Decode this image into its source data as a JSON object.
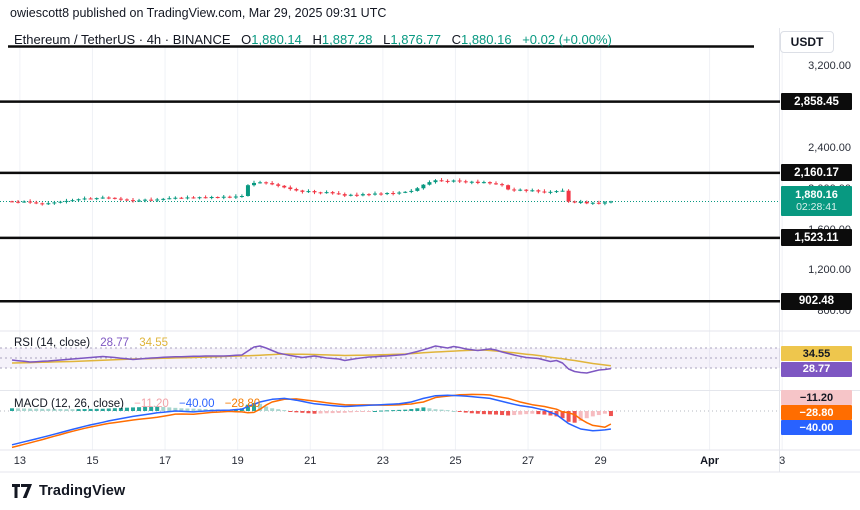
{
  "attribution": "owiescott8 published on TradingView.com, Mar 29, 2025 09:31 UTC",
  "header": {
    "title": "Ethereum / TetherUS · 4h · BINANCE",
    "o_key": "O",
    "o": "1,880.14",
    "h_key": "H",
    "h": "1,887.28",
    "l_key": "L",
    "l": "1,876.77",
    "c_key": "C",
    "c": "1,880.16",
    "change": "+0.02 (+0.00%)"
  },
  "axis": {
    "currency": "USDT",
    "price_ticks": [
      {
        "value": 3200,
        "label": "3,200.00"
      },
      {
        "value": 2400,
        "label": "2,400.00"
      },
      {
        "value": 2000,
        "label": "2,000.00"
      },
      {
        "value": 1600,
        "label": "1,600.00"
      },
      {
        "value": 1200,
        "label": "1,200.00"
      },
      {
        "value": 800,
        "label": "800.00"
      }
    ],
    "key_levels": [
      {
        "value": 2858.45,
        "label": "2,858.45"
      },
      {
        "value": 2160.17,
        "label": "2,160.17"
      },
      {
        "value": 1523.11,
        "label": "1,523.11"
      },
      {
        "value": 902.48,
        "label": "902.48"
      }
    ],
    "last_price": {
      "value": 1880.16,
      "label": "1,880.16",
      "countdown": "02:28:41"
    },
    "time_ticks": [
      {
        "label": "13",
        "i": 1.3
      },
      {
        "label": "15",
        "i": 13.3
      },
      {
        "label": "17",
        "i": 25.3
      },
      {
        "label": "19",
        "i": 37.3
      },
      {
        "label": "21",
        "i": 49.3
      },
      {
        "label": "23",
        "i": 61.3
      },
      {
        "label": "25",
        "i": 73.3
      },
      {
        "label": "27",
        "i": 85.3
      },
      {
        "label": "29",
        "i": 97.3
      },
      {
        "label": "Apr",
        "i": 115.3,
        "bold": true
      },
      {
        "label": "3",
        "i": 127.3
      }
    ]
  },
  "rsi_pane": {
    "title": "RSI (14, close)",
    "value": "28.77",
    "ma_value": "34.55"
  },
  "macd_pane": {
    "title": "MACD (12, 26, close)",
    "hist_value": "−11.20",
    "macd_value": "−40.00",
    "signal_value": "−28.80"
  },
  "footer": {
    "brand": "TradingView"
  },
  "colors": {
    "up": "#089981",
    "down": "#f23645",
    "last_line": "#089981",
    "level_line": "#0c0c0c",
    "rsi_line": "#7e57c2",
    "rsi_ma": "#e0b43a",
    "rsi_band_fill": "rgba(126,87,194,0.08)",
    "rsi_band_edge": "#a9a3bd",
    "macd_line": "#2962ff",
    "signal_line": "#ff6d00",
    "hist_grow_above": "#26a69a",
    "hist_fall_above": "#a8d6cf",
    "hist_fall_below": "#ef5350",
    "hist_grow_below": "#f6bcc0",
    "badge_rsi_ma_bg": "#eec64d",
    "badge_rsi_bg": "#7e57c2",
    "badge_hist_bg": "#f6c5c8",
    "badge_signal_bg": "#ff6d00",
    "badge_macd_bg": "#2962ff",
    "grid": "#f0f2f6",
    "separator": "#e4e6ec",
    "axis_text": "#2a2e39"
  },
  "chart_data": {
    "type": "candlestick",
    "symbol": "Ethereum / TetherUS",
    "interval": "4h",
    "exchange": "BINANCE",
    "ohlc_header": {
      "open": 1880.14,
      "high": 1887.28,
      "low": 1876.77,
      "close": 1880.16,
      "change": "+0.02 (+0.00%)"
    },
    "x_tick_labels": [
      "13",
      "15",
      "17",
      "19",
      "21",
      "23",
      "25",
      "27",
      "29",
      "Apr",
      "3"
    ],
    "price_axis_ticks": [
      800,
      1200,
      1600,
      2000,
      2400,
      3200
    ],
    "horizontal_black_levels": [
      2858.45,
      2160.17,
      1523.11,
      902.48
    ],
    "last_price": 1880.16,
    "candles": {
      "first_open": 1882,
      "closes": [
        1878,
        1874,
        1880,
        1871,
        1862,
        1855,
        1863,
        1871,
        1878,
        1886,
        1893,
        1902,
        1910,
        1906,
        1913,
        1919,
        1916,
        1908,
        1900,
        1893,
        1885,
        1890,
        1898,
        1893,
        1900,
        1906,
        1912,
        1917,
        1913,
        1920,
        1916,
        1922,
        1918,
        1924,
        1920,
        1927,
        1923,
        1929,
        1934,
        2040,
        2062,
        2068,
        2060,
        2048,
        2034,
        2018,
        2002,
        1988,
        1975,
        1982,
        1970,
        1962,
        1972,
        1960,
        1952,
        1938,
        1946,
        1940,
        1952,
        1948,
        1958,
        1954,
        1963,
        1958,
        1968,
        1975,
        1984,
        2010,
        2045,
        2070,
        2088,
        2082,
        2075,
        2086,
        2078,
        2068,
        2074,
        2062,
        2070,
        2058,
        2050,
        2040,
        1998,
        1990,
        1996,
        1985,
        1990,
        1978,
        1970,
        1975,
        1982,
        1986,
        1880,
        1870,
        1876,
        1862,
        1868,
        1860,
        1872,
        1880.16
      ]
    },
    "rsi": {
      "last": 28.77,
      "ma_last": 34.55,
      "bands": [
        70,
        50,
        30
      ],
      "points": [
        [
          0,
          46
        ],
        [
          3,
          42
        ],
        [
          6,
          44
        ],
        [
          9,
          47
        ],
        [
          12,
          50
        ],
        [
          15,
          53
        ],
        [
          17,
          51
        ],
        [
          20,
          47
        ],
        [
          23,
          50
        ],
        [
          26,
          52
        ],
        [
          29,
          53
        ],
        [
          32,
          54
        ],
        [
          35,
          54
        ],
        [
          38,
          56
        ],
        [
          39,
          64
        ],
        [
          40,
          72
        ],
        [
          41,
          74
        ],
        [
          42,
          70
        ],
        [
          43,
          65
        ],
        [
          44,
          60
        ],
        [
          46,
          55
        ],
        [
          48,
          51
        ],
        [
          50,
          54
        ],
        [
          52,
          50
        ],
        [
          54,
          48
        ],
        [
          55,
          45
        ],
        [
          57,
          49
        ],
        [
          59,
          52
        ],
        [
          62,
          54
        ],
        [
          65,
          57
        ],
        [
          67,
          63
        ],
        [
          69,
          70
        ],
        [
          70,
          74
        ],
        [
          71,
          72
        ],
        [
          72,
          70
        ],
        [
          73,
          73
        ],
        [
          74,
          71
        ],
        [
          75,
          68
        ],
        [
          77,
          65
        ],
        [
          79,
          68
        ],
        [
          80,
          66
        ],
        [
          81,
          62
        ],
        [
          83,
          56
        ],
        [
          85,
          51
        ],
        [
          87,
          49
        ],
        [
          89,
          43
        ],
        [
          90,
          45
        ],
        [
          91,
          40
        ],
        [
          92,
          28
        ],
        [
          93,
          23
        ],
        [
          94,
          21
        ],
        [
          95,
          20
        ],
        [
          96,
          23
        ],
        [
          97,
          26
        ],
        [
          98,
          27
        ],
        [
          99,
          28.77
        ]
      ],
      "ma_points": [
        [
          0,
          40
        ],
        [
          10,
          43
        ],
        [
          20,
          48
        ],
        [
          30,
          51
        ],
        [
          40,
          55
        ],
        [
          45,
          58
        ],
        [
          50,
          57
        ],
        [
          55,
          55
        ],
        [
          60,
          56
        ],
        [
          65,
          58
        ],
        [
          70,
          62
        ],
        [
          75,
          65
        ],
        [
          78,
          66
        ],
        [
          81,
          63
        ],
        [
          84,
          59
        ],
        [
          87,
          55
        ],
        [
          90,
          50
        ],
        [
          93,
          45
        ],
        [
          96,
          39
        ],
        [
          99,
          34.55
        ]
      ]
    },
    "macd": {
      "last_macd": -40.0,
      "last_signal": -28.8,
      "last_hist": -11.2,
      "points": [
        [
          0,
          -75
        ],
        [
          4,
          -62
        ],
        [
          8,
          -48
        ],
        [
          12,
          -34
        ],
        [
          16,
          -22
        ],
        [
          20,
          -12
        ],
        [
          24,
          -4
        ],
        [
          27,
          0
        ],
        [
          30,
          -2
        ],
        [
          33,
          1
        ],
        [
          36,
          2
        ],
        [
          38,
          4
        ],
        [
          39,
          10
        ],
        [
          41,
          20
        ],
        [
          43,
          26
        ],
        [
          45,
          28
        ],
        [
          47,
          24
        ],
        [
          50,
          16
        ],
        [
          53,
          12
        ],
        [
          55,
          10
        ],
        [
          58,
          12
        ],
        [
          61,
          14
        ],
        [
          64,
          16
        ],
        [
          66,
          20
        ],
        [
          68,
          28
        ],
        [
          70,
          34
        ],
        [
          72,
          35
        ],
        [
          74,
          34
        ],
        [
          76,
          32
        ],
        [
          79,
          28
        ],
        [
          82,
          18
        ],
        [
          84,
          12
        ],
        [
          86,
          8
        ],
        [
          88,
          2
        ],
        [
          90,
          -8
        ],
        [
          92,
          -28
        ],
        [
          94,
          -40
        ],
        [
          96,
          -44
        ],
        [
          98,
          -42
        ],
        [
          99,
          -40
        ]
      ],
      "hist_points": [
        [
          0,
          6
        ],
        [
          5,
          5
        ],
        [
          10,
          4
        ],
        [
          15,
          5
        ],
        [
          20,
          8
        ],
        [
          24,
          10
        ],
        [
          28,
          6
        ],
        [
          33,
          4
        ],
        [
          36,
          3
        ],
        [
          38,
          6
        ],
        [
          39,
          14
        ],
        [
          40,
          18
        ],
        [
          41,
          16
        ],
        [
          42,
          10
        ],
        [
          43,
          6
        ],
        [
          45,
          2
        ],
        [
          47,
          -3
        ],
        [
          50,
          -6
        ],
        [
          52,
          -5
        ],
        [
          55,
          -4
        ],
        [
          57,
          -2
        ],
        [
          59,
          -1
        ],
        [
          61,
          1
        ],
        [
          63,
          2
        ],
        [
          65,
          3
        ],
        [
          67,
          6
        ],
        [
          68,
          8
        ],
        [
          70,
          4
        ],
        [
          72,
          2
        ],
        [
          74,
          -2
        ],
        [
          76,
          -5
        ],
        [
          78,
          -7
        ],
        [
          80,
          -8
        ],
        [
          82,
          -10
        ],
        [
          84,
          -8
        ],
        [
          86,
          -6
        ],
        [
          88,
          -8
        ],
        [
          90,
          -12
        ],
        [
          91,
          -16
        ],
        [
          92,
          -24
        ],
        [
          93,
          -26
        ],
        [
          94,
          -22
        ],
        [
          95,
          -16
        ],
        [
          96,
          -12
        ],
        [
          97,
          -9
        ],
        [
          98,
          -6
        ],
        [
          99,
          -11.2
        ]
      ]
    }
  }
}
